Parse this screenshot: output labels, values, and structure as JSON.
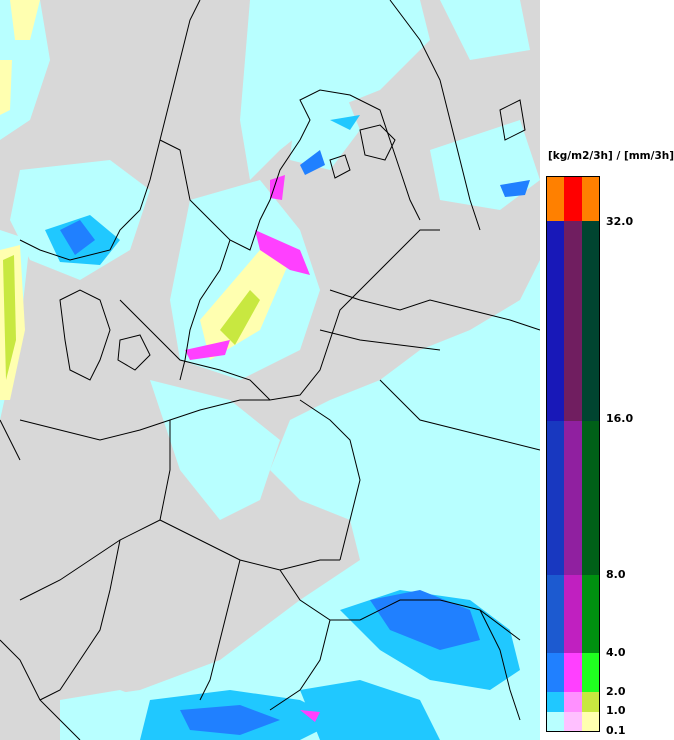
{
  "legend": {
    "unit_label": "[kg/m2/3h] / [mm/3h]",
    "ticks": [
      "32.0",
      "16.0",
      "8.0",
      "4.0",
      "2.0",
      "1.0",
      "0.1"
    ],
    "classes": [
      {
        "colors": [
          "#ff8000",
          "#ff0000",
          "#ff8000"
        ]
      },
      {
        "colors": [
          "#1818b8",
          "#701e60",
          "#004430"
        ]
      },
      {
        "colors": [
          "#1838c0",
          "#9020a0",
          "#006018"
        ]
      },
      {
        "colors": [
          "#1c5ad0",
          "#c020c0",
          "#009010"
        ]
      },
      {
        "colors": [
          "#2080ff",
          "#ff40ff",
          "#20ff20"
        ]
      },
      {
        "colors": [
          "#20c8ff",
          "#ff90ff",
          "#c8e840"
        ]
      },
      {
        "colors": [
          "#b8ffff",
          "#ffc0ff",
          "#ffffb0"
        ]
      }
    ]
  },
  "map": {
    "background_color": "#d8d8d8",
    "precip_colors": {
      "light": "#b8ffff",
      "moderate": "#20c8ff",
      "heavy": "#2080ff",
      "very_heavy": "#1c5ad0",
      "snow_light": "#ffffb0",
      "snow_mod": "#c8e840",
      "mixed": "#ff40ff"
    }
  }
}
